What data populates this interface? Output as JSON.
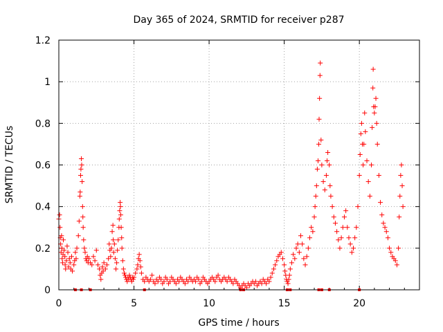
{
  "chart_data": {
    "type": "scatter",
    "title": "Day 365 of 2024, SRMTID for receiver p287",
    "xlabel": "GPS time / hours",
    "ylabel": "SRMTID / TECUs",
    "xlim": [
      0,
      24
    ],
    "ylim": [
      0,
      1.2
    ],
    "x_ticks": [
      0,
      5,
      10,
      15,
      20
    ],
    "x_tick_labels": [
      "0",
      "5",
      "10",
      "15",
      "20"
    ],
    "y_ticks": [
      0,
      0.2,
      0.4,
      0.6,
      0.8,
      1,
      1.2
    ],
    "y_tick_labels": [
      "0",
      "0.2",
      "0.4",
      "0.6",
      "0.8",
      "1",
      "1.2"
    ],
    "grid": true,
    "marker": "+",
    "color": "#ff0000",
    "series": [
      {
        "name": "SRMTID",
        "points": [
          [
            0.0,
            0.34
          ],
          [
            0.05,
            0.36
          ],
          [
            0.08,
            0.3
          ],
          [
            0.1,
            0.25
          ],
          [
            0.12,
            0.22
          ],
          [
            0.15,
            0.18
          ],
          [
            0.18,
            0.26
          ],
          [
            0.2,
            0.2
          ],
          [
            0.22,
            0.15
          ],
          [
            0.25,
            0.13
          ],
          [
            0.28,
            0.17
          ],
          [
            0.3,
            0.24
          ],
          [
            0.35,
            0.19
          ],
          [
            0.4,
            0.16
          ],
          [
            0.42,
            0.12
          ],
          [
            0.45,
            0.1
          ],
          [
            0.5,
            0.14
          ],
          [
            0.55,
            0.21
          ],
          [
            0.6,
            0.18
          ],
          [
            0.65,
            0.11
          ],
          [
            0.7,
            0.15
          ],
          [
            0.75,
            0.13
          ],
          [
            0.8,
            0.1
          ],
          [
            0.85,
            0.16
          ],
          [
            0.9,
            0.09
          ],
          [
            1.0,
            0.12
          ],
          [
            1.05,
            0.14
          ],
          [
            1.1,
            0.18
          ],
          [
            1.15,
            0.15
          ],
          [
            1.2,
            0.2
          ],
          [
            1.3,
            0.26
          ],
          [
            1.35,
            0.33
          ],
          [
            1.4,
            0.45
          ],
          [
            1.42,
            0.47
          ],
          [
            1.45,
            0.55
          ],
          [
            1.47,
            0.58
          ],
          [
            1.5,
            0.63
          ],
          [
            1.52,
            0.6
          ],
          [
            1.55,
            0.52
          ],
          [
            1.58,
            0.4
          ],
          [
            1.6,
            0.35
          ],
          [
            1.62,
            0.3
          ],
          [
            1.65,
            0.24
          ],
          [
            1.7,
            0.2
          ],
          [
            1.75,
            0.18
          ],
          [
            1.8,
            0.15
          ],
          [
            1.85,
            0.14
          ],
          [
            1.9,
            0.16
          ],
          [
            1.95,
            0.13
          ],
          [
            2.0,
            0.15
          ],
          [
            2.1,
            0.13
          ],
          [
            2.2,
            0.12
          ],
          [
            2.3,
            0.16
          ],
          [
            2.4,
            0.14
          ],
          [
            2.5,
            0.19
          ],
          [
            2.6,
            0.12
          ],
          [
            2.7,
            0.1
          ],
          [
            2.75,
            0.07
          ],
          [
            2.8,
            0.05
          ],
          [
            2.85,
            0.08
          ],
          [
            2.9,
            0.11
          ],
          [
            2.95,
            0.09
          ],
          [
            3.0,
            0.13
          ],
          [
            3.1,
            0.1
          ],
          [
            3.2,
            0.12
          ],
          [
            3.3,
            0.15
          ],
          [
            3.35,
            0.22
          ],
          [
            3.4,
            0.19
          ],
          [
            3.45,
            0.16
          ],
          [
            3.5,
            0.2
          ],
          [
            3.55,
            0.28
          ],
          [
            3.6,
            0.31
          ],
          [
            3.62,
            0.24
          ],
          [
            3.65,
            0.18
          ],
          [
            3.7,
            0.22
          ],
          [
            3.75,
            0.15
          ],
          [
            3.8,
            0.1
          ],
          [
            3.85,
            0.13
          ],
          [
            3.9,
            0.19
          ],
          [
            3.95,
            0.24
          ],
          [
            4.0,
            0.3
          ],
          [
            4.02,
            0.34
          ],
          [
            4.05,
            0.38
          ],
          [
            4.08,
            0.42
          ],
          [
            4.1,
            0.4
          ],
          [
            4.12,
            0.36
          ],
          [
            4.15,
            0.3
          ],
          [
            4.18,
            0.25
          ],
          [
            4.2,
            0.2
          ],
          [
            4.25,
            0.14
          ],
          [
            4.3,
            0.1
          ],
          [
            4.35,
            0.08
          ],
          [
            4.4,
            0.07
          ],
          [
            4.45,
            0.06
          ],
          [
            4.5,
            0.05
          ],
          [
            4.55,
            0.04
          ],
          [
            4.6,
            0.06
          ],
          [
            4.65,
            0.05
          ],
          [
            4.7,
            0.07
          ],
          [
            4.75,
            0.06
          ],
          [
            4.8,
            0.05
          ],
          [
            4.85,
            0.04
          ],
          [
            4.9,
            0.06
          ],
          [
            4.95,
            0.05
          ],
          [
            5.0,
            0.06
          ],
          [
            5.1,
            0.08
          ],
          [
            5.2,
            0.1
          ],
          [
            5.25,
            0.12
          ],
          [
            5.3,
            0.15
          ],
          [
            5.35,
            0.17
          ],
          [
            5.4,
            0.14
          ],
          [
            5.45,
            0.11
          ],
          [
            5.5,
            0.08
          ],
          [
            5.6,
            0.05
          ],
          [
            5.7,
            0.04
          ],
          [
            5.8,
            0.06
          ],
          [
            5.9,
            0.05
          ],
          [
            6.0,
            0.04
          ],
          [
            6.1,
            0.05
          ],
          [
            6.2,
            0.07
          ],
          [
            6.3,
            0.04
          ],
          [
            6.4,
            0.03
          ],
          [
            6.5,
            0.05
          ],
          [
            6.6,
            0.04
          ],
          [
            6.7,
            0.06
          ],
          [
            6.8,
            0.05
          ],
          [
            6.9,
            0.03
          ],
          [
            7.0,
            0.04
          ],
          [
            7.1,
            0.06
          ],
          [
            7.2,
            0.05
          ],
          [
            7.3,
            0.03
          ],
          [
            7.4,
            0.04
          ],
          [
            7.5,
            0.06
          ],
          [
            7.6,
            0.05
          ],
          [
            7.7,
            0.04
          ],
          [
            7.8,
            0.03
          ],
          [
            7.9,
            0.05
          ],
          [
            8.0,
            0.04
          ],
          [
            8.1,
            0.06
          ],
          [
            8.2,
            0.05
          ],
          [
            8.3,
            0.04
          ],
          [
            8.4,
            0.03
          ],
          [
            8.5,
            0.05
          ],
          [
            8.6,
            0.04
          ],
          [
            8.7,
            0.06
          ],
          [
            8.8,
            0.05
          ],
          [
            8.9,
            0.04
          ],
          [
            9.0,
            0.05
          ],
          [
            9.1,
            0.04
          ],
          [
            9.2,
            0.06
          ],
          [
            9.3,
            0.05
          ],
          [
            9.4,
            0.03
          ],
          [
            9.5,
            0.04
          ],
          [
            9.6,
            0.06
          ],
          [
            9.7,
            0.05
          ],
          [
            9.8,
            0.04
          ],
          [
            9.9,
            0.03
          ],
          [
            10.0,
            0.04
          ],
          [
            10.1,
            0.05
          ],
          [
            10.2,
            0.06
          ],
          [
            10.3,
            0.05
          ],
          [
            10.4,
            0.04
          ],
          [
            10.5,
            0.06
          ],
          [
            10.6,
            0.07
          ],
          [
            10.7,
            0.05
          ],
          [
            10.8,
            0.04
          ],
          [
            10.9,
            0.05
          ],
          [
            11.0,
            0.06
          ],
          [
            11.1,
            0.05
          ],
          [
            11.2,
            0.04
          ],
          [
            11.3,
            0.06
          ],
          [
            11.4,
            0.05
          ],
          [
            11.5,
            0.04
          ],
          [
            11.6,
            0.03
          ],
          [
            11.7,
            0.05
          ],
          [
            11.8,
            0.04
          ],
          [
            11.9,
            0.03
          ],
          [
            12.0,
            0.02
          ],
          [
            12.1,
            0.01
          ],
          [
            12.2,
            0.02
          ],
          [
            12.3,
            0.03
          ],
          [
            12.4,
            0.02
          ],
          [
            12.5,
            0.01
          ],
          [
            12.6,
            0.03
          ],
          [
            12.7,
            0.02
          ],
          [
            12.8,
            0.03
          ],
          [
            12.9,
            0.04
          ],
          [
            13.0,
            0.03
          ],
          [
            13.1,
            0.04
          ],
          [
            13.2,
            0.02
          ],
          [
            13.3,
            0.03
          ],
          [
            13.4,
            0.04
          ],
          [
            13.5,
            0.03
          ],
          [
            13.6,
            0.05
          ],
          [
            13.7,
            0.04
          ],
          [
            13.8,
            0.03
          ],
          [
            13.9,
            0.05
          ],
          [
            14.0,
            0.04
          ],
          [
            14.1,
            0.06
          ],
          [
            14.2,
            0.08
          ],
          [
            14.3,
            0.1
          ],
          [
            14.4,
            0.12
          ],
          [
            14.5,
            0.14
          ],
          [
            14.6,
            0.16
          ],
          [
            14.7,
            0.17
          ],
          [
            14.8,
            0.18
          ],
          [
            14.9,
            0.15
          ],
          [
            15.0,
            0.12
          ],
          [
            15.05,
            0.09
          ],
          [
            15.1,
            0.07
          ],
          [
            15.15,
            0.05
          ],
          [
            15.2,
            0.04
          ],
          [
            15.25,
            0.03
          ],
          [
            15.3,
            0.05
          ],
          [
            15.35,
            0.07
          ],
          [
            15.4,
            0.1
          ],
          [
            15.5,
            0.13
          ],
          [
            15.6,
            0.17
          ],
          [
            15.7,
            0.15
          ],
          [
            15.8,
            0.2
          ],
          [
            15.9,
            0.22
          ],
          [
            16.0,
            0.18
          ],
          [
            16.1,
            0.26
          ],
          [
            16.2,
            0.22
          ],
          [
            16.3,
            0.15
          ],
          [
            16.4,
            0.12
          ],
          [
            16.5,
            0.16
          ],
          [
            16.6,
            0.2
          ],
          [
            16.7,
            0.25
          ],
          [
            16.8,
            0.3
          ],
          [
            16.9,
            0.28
          ],
          [
            17.0,
            0.35
          ],
          [
            17.05,
            0.4
          ],
          [
            17.1,
            0.45
          ],
          [
            17.15,
            0.5
          ],
          [
            17.2,
            0.58
          ],
          [
            17.25,
            0.62
          ],
          [
            17.3,
            0.7
          ],
          [
            17.32,
            0.82
          ],
          [
            17.35,
            0.92
          ],
          [
            17.38,
            1.03
          ],
          [
            17.4,
            1.09
          ],
          [
            17.45,
            0.72
          ],
          [
            17.5,
            0.6
          ],
          [
            17.6,
            0.52
          ],
          [
            17.7,
            0.48
          ],
          [
            17.8,
            0.55
          ],
          [
            17.85,
            0.62
          ],
          [
            17.9,
            0.66
          ],
          [
            18.0,
            0.6
          ],
          [
            18.05,
            0.5
          ],
          [
            18.1,
            0.45
          ],
          [
            18.2,
            0.4
          ],
          [
            18.3,
            0.35
          ],
          [
            18.4,
            0.32
          ],
          [
            18.5,
            0.28
          ],
          [
            18.6,
            0.24
          ],
          [
            18.7,
            0.2
          ],
          [
            18.8,
            0.25
          ],
          [
            18.9,
            0.3
          ],
          [
            19.0,
            0.35
          ],
          [
            19.1,
            0.38
          ],
          [
            19.2,
            0.3
          ],
          [
            19.3,
            0.25
          ],
          [
            19.4,
            0.22
          ],
          [
            19.5,
            0.18
          ],
          [
            19.6,
            0.2
          ],
          [
            19.7,
            0.25
          ],
          [
            19.8,
            0.3
          ],
          [
            19.9,
            0.4
          ],
          [
            20.0,
            0.55
          ],
          [
            20.05,
            0.65
          ],
          [
            20.1,
            0.75
          ],
          [
            20.15,
            0.8
          ],
          [
            20.2,
            0.7
          ],
          [
            20.25,
            0.6
          ],
          [
            20.3,
            0.7
          ],
          [
            20.35,
            0.85
          ],
          [
            20.4,
            0.76
          ],
          [
            20.5,
            0.62
          ],
          [
            20.6,
            0.52
          ],
          [
            20.7,
            0.45
          ],
          [
            20.8,
            0.6
          ],
          [
            20.85,
            0.78
          ],
          [
            20.9,
            0.97
          ],
          [
            20.92,
            1.06
          ],
          [
            20.95,
            0.88
          ],
          [
            21.0,
            0.85
          ],
          [
            21.05,
            0.88
          ],
          [
            21.1,
            0.92
          ],
          [
            21.15,
            0.8
          ],
          [
            21.2,
            0.7
          ],
          [
            21.3,
            0.55
          ],
          [
            21.4,
            0.42
          ],
          [
            21.5,
            0.36
          ],
          [
            21.6,
            0.32
          ],
          [
            21.7,
            0.3
          ],
          [
            21.8,
            0.28
          ],
          [
            21.9,
            0.25
          ],
          [
            22.0,
            0.2
          ],
          [
            22.1,
            0.18
          ],
          [
            22.2,
            0.16
          ],
          [
            22.3,
            0.15
          ],
          [
            22.4,
            0.14
          ],
          [
            22.5,
            0.12
          ],
          [
            22.6,
            0.2
          ],
          [
            22.65,
            0.35
          ],
          [
            22.7,
            0.45
          ],
          [
            22.75,
            0.55
          ],
          [
            22.8,
            0.6
          ],
          [
            22.85,
            0.5
          ],
          [
            22.9,
            0.4
          ]
        ],
        "zero_markers": [
          1.1,
          1.5,
          2.1,
          5.7,
          12.1,
          12.3,
          15.2,
          15.4,
          17.3,
          17.5,
          18.0,
          20.0
        ]
      }
    ]
  }
}
